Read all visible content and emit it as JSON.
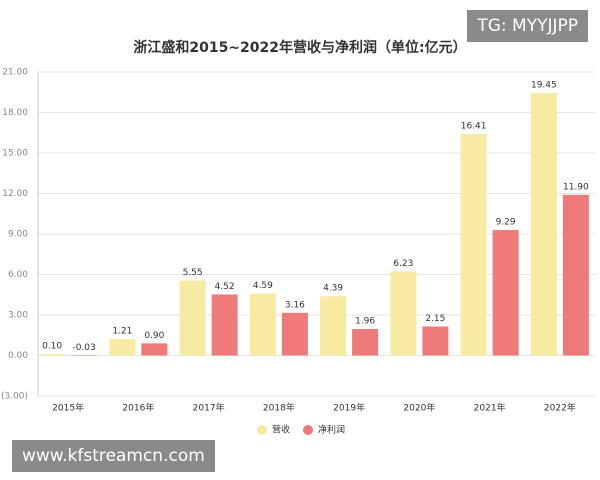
{
  "chart_data": {
    "type": "bar",
    "title": "浙江盛和2015~2022年营收与净利润（单位:亿元）",
    "categories": [
      "2015年",
      "2016年",
      "2017年",
      "2018年",
      "2019年",
      "2020年",
      "2021年",
      "2022年"
    ],
    "series": [
      {
        "name": "营收",
        "color": "#f7eaa2",
        "values": [
          0.1,
          1.21,
          5.55,
          4.59,
          4.39,
          6.23,
          16.41,
          19.45
        ],
        "value_labels": [
          "0.10",
          "1.21",
          "5.55",
          "4.59",
          "4.39",
          "6.23",
          "16.41",
          "19.45"
        ]
      },
      {
        "name": "净利润",
        "color": "#ee7a7a",
        "values": [
          -0.03,
          0.9,
          4.52,
          3.16,
          1.96,
          2.15,
          9.29,
          11.9
        ],
        "value_labels": [
          "-0.03",
          "0.90",
          "4.52",
          "3.16",
          "1.96",
          "2.15",
          "9.29",
          "11.90"
        ]
      }
    ],
    "ylim": [
      -3,
      21
    ],
    "yticks": [
      {
        "value": -3,
        "label": "(3.00)"
      },
      {
        "value": 0,
        "label": "0.00"
      },
      {
        "value": 3,
        "label": "3.00"
      },
      {
        "value": 6,
        "label": "6.00"
      },
      {
        "value": 9,
        "label": "9.00"
      },
      {
        "value": 12,
        "label": "12.00"
      },
      {
        "value": 15,
        "label": "15.00"
      },
      {
        "value": 18,
        "label": "18.00"
      },
      {
        "value": 21,
        "label": "21.00"
      }
    ],
    "grid": true,
    "legend": "bottom"
  },
  "watermarks": [
    "TG: MYYJJPP",
    "www.kfstreamcn.com"
  ]
}
